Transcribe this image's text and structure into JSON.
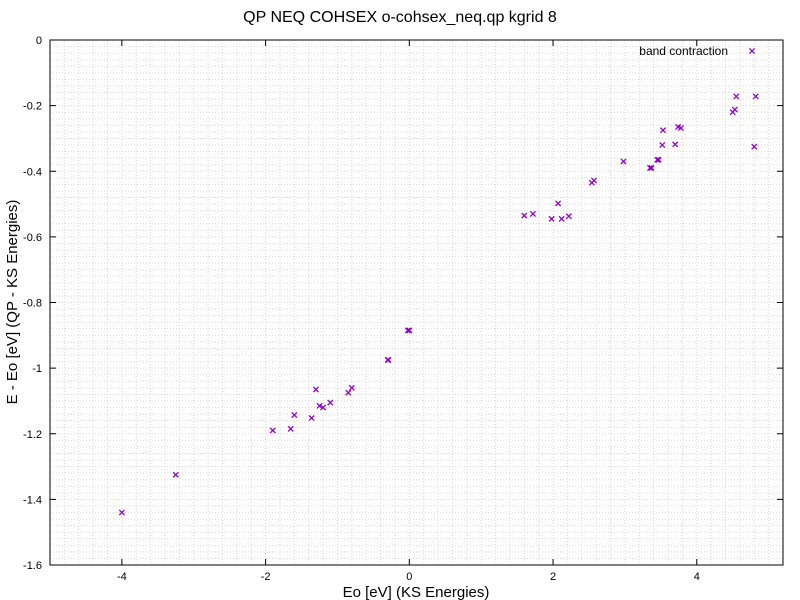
{
  "chart_data": {
    "type": "scatter",
    "title": "QP NEQ COHSEX o-cohsex_neq.qp kgrid 8",
    "xlabel": "Eo [eV] (KS Energies)",
    "ylabel": "E - Eo [eV] (QP - KS Energies)",
    "xlim": [
      -5,
      5.2
    ],
    "ylim": [
      -1.6,
      0
    ],
    "xticks": [
      -4,
      -2,
      0,
      2,
      4
    ],
    "xtick_labels": [
      "-4",
      "-2",
      "0",
      "2",
      "4"
    ],
    "yticks": [
      0,
      -0.2,
      -0.4,
      -0.6,
      -0.8,
      -1,
      -1.2,
      -1.4,
      -1.6
    ],
    "ytick_labels": [
      "0",
      "-0.2",
      "-0.4",
      "-0.6",
      "-0.8",
      "-1",
      "-1.2",
      "-1.4",
      "-1.6"
    ],
    "grid": true,
    "legend_position": "top-right",
    "series": [
      {
        "name": "band contraction",
        "color": "#9400d3",
        "marker": "cross",
        "x": [
          -4.0,
          -3.25,
          -1.9,
          -1.65,
          -1.6,
          -1.36,
          -1.3,
          -1.25,
          -1.2,
          -1.1,
          -0.85,
          -0.8,
          -0.3,
          -0.29,
          -0.02,
          0.0,
          1.6,
          1.72,
          1.98,
          2.07,
          2.12,
          2.22,
          2.54,
          2.57,
          2.98,
          3.35,
          3.37,
          3.45,
          3.47,
          3.52,
          3.53,
          3.7,
          3.74,
          3.78,
          4.5,
          4.53,
          4.55,
          4.8,
          4.82
        ],
        "y": [
          -1.44,
          -1.325,
          -1.19,
          -1.185,
          -1.143,
          -1.152,
          -1.065,
          -1.115,
          -1.12,
          -1.105,
          -1.075,
          -1.06,
          -0.975,
          -0.975,
          -0.885,
          -0.885,
          -0.535,
          -0.53,
          -0.545,
          -0.498,
          -0.545,
          -0.537,
          -0.435,
          -0.428,
          -0.37,
          -0.39,
          -0.39,
          -0.365,
          -0.365,
          -0.32,
          -0.275,
          -0.318,
          -0.265,
          -0.268,
          -0.22,
          -0.212,
          -0.172,
          -0.325,
          -0.172
        ]
      }
    ]
  }
}
